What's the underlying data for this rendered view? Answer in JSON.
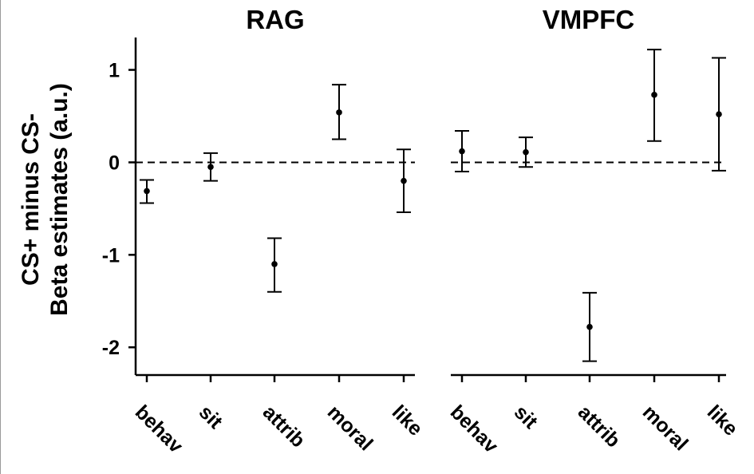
{
  "chart_data": {
    "type": "scatter",
    "ylabel_lines": [
      "CS+ minus CS-",
      "Beta estimates (a.u.)"
    ],
    "ylim": [
      -2.3,
      1.35
    ],
    "yticks": [
      1,
      0,
      -1,
      -2
    ],
    "ytick_labels": [
      "1",
      "0",
      "-1",
      "-2"
    ],
    "reference_line": 0,
    "categories": [
      "behav",
      "sit",
      "attrib",
      "moral",
      "like"
    ],
    "panels": [
      {
        "title": "RAG",
        "points": [
          {
            "category": "behav",
            "mean": -0.31,
            "low": -0.44,
            "high": -0.19
          },
          {
            "category": "sit",
            "mean": -0.05,
            "low": -0.2,
            "high": 0.1
          },
          {
            "category": "attrib",
            "mean": -1.1,
            "low": -1.4,
            "high": -0.82
          },
          {
            "category": "moral",
            "mean": 0.54,
            "low": 0.25,
            "high": 0.84
          },
          {
            "category": "like",
            "mean": -0.2,
            "low": -0.54,
            "high": 0.14
          }
        ]
      },
      {
        "title": "VMPFC",
        "points": [
          {
            "category": "behav",
            "mean": 0.12,
            "low": -0.1,
            "high": 0.34
          },
          {
            "category": "sit",
            "mean": 0.11,
            "low": -0.05,
            "high": 0.27
          },
          {
            "category": "attrib",
            "mean": -1.78,
            "low": -2.15,
            "high": -1.41
          },
          {
            "category": "moral",
            "mean": 0.73,
            "low": 0.23,
            "high": 1.22
          },
          {
            "category": "like",
            "mean": 0.52,
            "low": -0.09,
            "high": 1.13
          }
        ]
      }
    ]
  }
}
